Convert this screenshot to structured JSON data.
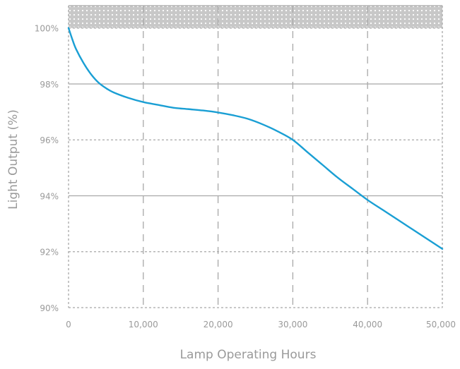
{
  "chart_data": {
    "type": "line",
    "title": "",
    "xlabel": "Lamp Operating Hours",
    "ylabel": "Light Output (%)",
    "xlim": [
      0,
      50000
    ],
    "ylim": [
      90,
      100.8
    ],
    "x_ticks": [
      0,
      10000,
      20000,
      30000,
      40000,
      50000
    ],
    "x_tick_labels": [
      "0",
      "10,000",
      "20,000",
      "30,000",
      "40,000",
      "50,000"
    ],
    "y_ticks": [
      90,
      92,
      94,
      96,
      98,
      100
    ],
    "y_tick_labels": [
      "90%",
      "92%",
      "94%",
      "96%",
      "98%",
      "100%"
    ],
    "grid": true,
    "legend": "none",
    "colors": {
      "line": "#1a9fd4",
      "grid": "#a8a8a8",
      "axis_text": "#9a9a9a",
      "band_fill": "#c8c8c8",
      "band_dots": "#ffffff"
    },
    "series": [
      {
        "x": [
          0,
          500,
          1000,
          2000,
          3000,
          4000,
          5000,
          6000,
          8000,
          10000,
          12000,
          14000,
          16000,
          18000,
          20000,
          22000,
          24000,
          26000,
          28000,
          30000,
          32000,
          34000,
          36000,
          38000,
          40000,
          42000,
          44000,
          46000,
          48000,
          50000
        ],
        "y": [
          100.0,
          99.6,
          99.25,
          98.75,
          98.35,
          98.05,
          97.85,
          97.7,
          97.5,
          97.35,
          97.25,
          97.15,
          97.1,
          97.05,
          96.98,
          96.88,
          96.75,
          96.55,
          96.3,
          96.0,
          95.55,
          95.1,
          94.65,
          94.25,
          93.85,
          93.5,
          93.15,
          92.8,
          92.45,
          92.1
        ]
      }
    ],
    "annotations": [
      {
        "type": "band",
        "y_from": 100.0,
        "y_to": 100.8
      }
    ]
  }
}
